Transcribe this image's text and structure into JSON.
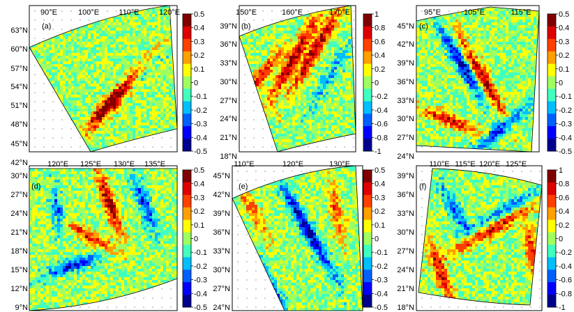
{
  "panels": [
    {
      "label": "(a)",
      "lon_ticks": [
        "90°E",
        "100°E",
        "110°E",
        "120°E"
      ],
      "lat_ticks": [
        "63°N",
        "60°N",
        "57°N",
        "54°N",
        "51°N",
        "48°N",
        "45°N",
        "42°N"
      ],
      "colorbar": {
        "ticks": [
          "0.5",
          "0.4",
          "0.3",
          "0.2",
          "0.1",
          "0",
          "-0.1",
          "-0.2",
          "-0.3",
          "-0.4",
          "-0.5"
        ]
      },
      "value_range": [
        -0.5,
        0.5
      ]
    },
    {
      "label": "(b)",
      "lon_ticks": [
        "150°E",
        "160°E",
        "170°E"
      ],
      "lat_ticks": [
        "39°N",
        "36°N",
        "33°N",
        "30°N",
        "27°N",
        "24°N",
        "21°N",
        "18°N"
      ],
      "colorbar": {
        "ticks": [
          "1",
          "0.8",
          "0.6",
          "0.4",
          "0.2",
          "0",
          "-0.2",
          "-0.4",
          "-0.6",
          "-0.8",
          "-1"
        ]
      },
      "value_range": [
        -1,
        1
      ]
    },
    {
      "label": "(c)",
      "lon_ticks": [
        "95°E",
        "105°E",
        "115°E"
      ],
      "lat_ticks": [
        "45°N",
        "42°N",
        "39°N",
        "36°N",
        "33°N",
        "30°N",
        "27°N",
        "24°N"
      ],
      "colorbar": {
        "ticks": [
          "0.5",
          "0.4",
          "0.3",
          "0.2",
          "0.1",
          "0",
          "-0.1",
          "-0.2",
          "-0.3",
          "-0.4",
          "-0.5"
        ]
      },
      "value_range": [
        -0.5,
        0.5
      ]
    },
    {
      "label": "(d)",
      "lon_ticks": [
        "120°E",
        "125°E",
        "130°E",
        "135°E"
      ],
      "lat_ticks": [
        "30°N",
        "27°N",
        "24°N",
        "21°N",
        "18°N",
        "15°N",
        "12°N",
        "9°N"
      ],
      "colorbar": {
        "ticks": [
          "0.5",
          "0.4",
          "0.3",
          "0.2",
          "0.1",
          "0",
          "-0.1",
          "-0.2",
          "-0.3",
          "-0.4",
          "-0.5"
        ]
      },
      "value_range": [
        -0.5,
        0.5
      ]
    },
    {
      "label": "(e)",
      "lon_ticks": [
        "110°E",
        "120°E",
        "130°E"
      ],
      "lat_ticks": [
        "45°N",
        "42°N",
        "39°N",
        "36°N",
        "33°N",
        "30°N",
        "27°N",
        "24°N"
      ],
      "colorbar": {
        "ticks": [
          "0.5",
          "0.4",
          "0.3",
          "0.2",
          "0.1",
          "0",
          "-0.1",
          "-0.2",
          "-0.3",
          "-0.4",
          "-0.5"
        ]
      },
      "value_range": [
        -0.5,
        0.5
      ]
    },
    {
      "label": "(f)",
      "lon_ticks": [
        "110°E",
        "115°E",
        "120°E",
        "125°E"
      ],
      "lat_ticks": [
        "39°N",
        "36°N",
        "33°N",
        "30°N",
        "27°N",
        "24°N",
        "21°N",
        "18°N"
      ],
      "colorbar": {
        "ticks": [
          "1",
          "0.8",
          "0.6",
          "0.4",
          "0.2",
          "0",
          "-0.2",
          "-0.4",
          "-0.6",
          "-0.8",
          "-1"
        ]
      },
      "value_range": [
        -1,
        1
      ]
    }
  ],
  "colormap": [
    "#00008f",
    "#0000ff",
    "#0060ff",
    "#00bfff",
    "#40ffbf",
    "#9fff60",
    "#ffff00",
    "#ff9f00",
    "#ff4000",
    "#df0000",
    "#800000"
  ]
}
